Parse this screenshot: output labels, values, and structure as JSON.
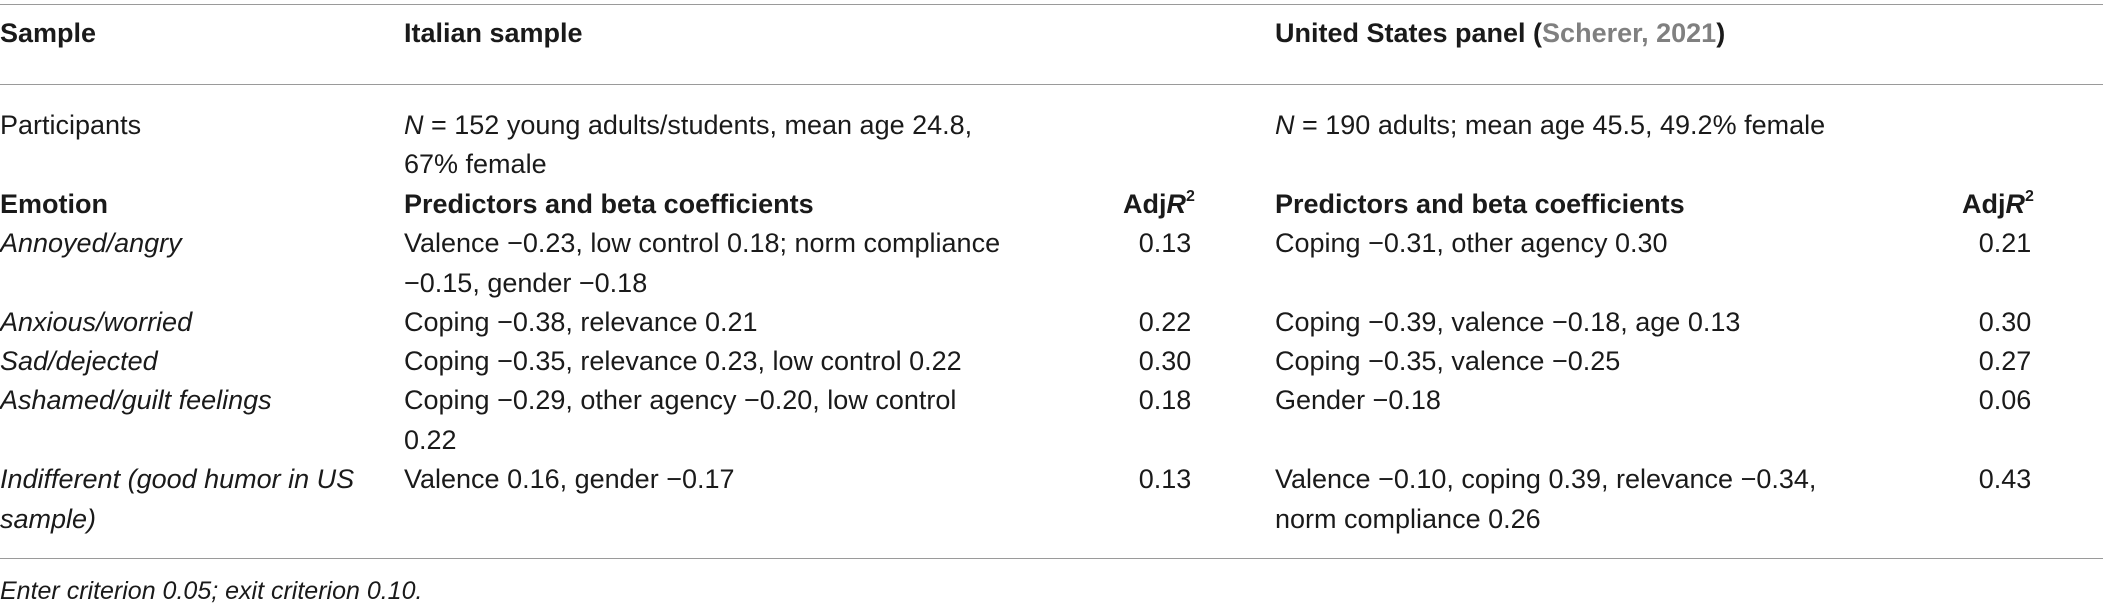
{
  "header": {
    "sample": "Sample",
    "italian": "Italian sample",
    "us_prefix": "United States panel (",
    "us_cite": "Scherer, 2021",
    "us_suffix": ")"
  },
  "participants": {
    "label": "Participants",
    "italian_line1_n": "N",
    "italian_line1": " = 152 young adults/students, mean age 24.8,",
    "italian_line2": "67% female",
    "us_n": "N",
    "us": " = 190 adults; mean age 45.5, 49.2% female"
  },
  "subheader": {
    "emotion": "Emotion",
    "predictors_it": "Predictors and beta coefficients",
    "adj_it": "Adj",
    "r_it": "R",
    "sup_it": "2",
    "predictors_us": "Predictors and beta coefficients",
    "adj_us": "Adj",
    "r_us": "R",
    "sup_us": "2"
  },
  "rows": [
    {
      "emotion": [
        "Annoyed/angry"
      ],
      "it": [
        "Valence −0.23, low control 0.18; norm compliance",
        "−0.15, gender −0.18"
      ],
      "it_r2": "0.13",
      "us": [
        "Coping −0.31, other agency 0.30"
      ],
      "us_r2": "0.21"
    },
    {
      "emotion": [
        "Anxious/worried"
      ],
      "it": [
        "Coping −0.38, relevance 0.21"
      ],
      "it_r2": "0.22",
      "us": [
        "Coping −0.39, valence −0.18, age 0.13"
      ],
      "us_r2": "0.30"
    },
    {
      "emotion": [
        "Sad/dejected"
      ],
      "it": [
        "Coping −0.35, relevance 0.23, low control 0.22"
      ],
      "it_r2": "0.30",
      "us": [
        "Coping −0.35, valence −0.25"
      ],
      "us_r2": "0.27"
    },
    {
      "emotion": [
        "Ashamed/guilt feelings"
      ],
      "it": [
        "Coping −0.29, other agency −0.20, low control",
        "0.22"
      ],
      "it_r2": "0.18",
      "us": [
        "Gender −0.18"
      ],
      "us_r2": "0.06"
    },
    {
      "emotion": [
        "Indifferent (good humor in US",
        "sample)"
      ],
      "it": [
        "Valence 0.16, gender −0.17"
      ],
      "it_r2": "0.13",
      "us": [
        "Valence −0.10, coping 0.39, relevance −0.34,",
        "norm compliance 0.26"
      ],
      "us_r2": "0.43"
    }
  ],
  "footnote": "Enter criterion 0.05; exit criterion 0.10."
}
